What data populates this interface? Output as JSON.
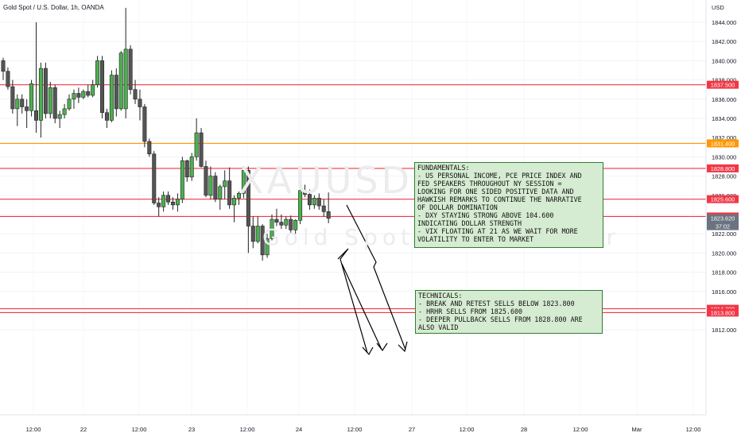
{
  "header": {
    "symbol_title": "Gold Spot / U.S. Dollar, 1h, OANDA",
    "currency": "USD"
  },
  "watermark": {
    "ticker": "XAUUSD, 1h",
    "description": "Gold Spot / U.S. Dollar"
  },
  "notes": {
    "fundamentals": "FUNDAMENTALS:\n- US PERSONAL INCOME, PCE PRICE INDEX AND\nFED SPEAKERS THROUGHOUT NY SESSION =\nLOOKING FOR ONE SIDED POSITIVE DATA AND\nHAWKISH REMARKS TO CONTINUE THE NARRATIVE\nOF DOLLAR DOMINATION\n- DXY STAYING STRONG ABOVE 104.600\nINDICATING DOLLAR STRENGTH\n- VIX FLOATING AT 21 AS WE WAIT FOR MORE\nVOLATILITY TO ENTER TO MARKET",
    "technicals": "TECHNICALS:\n- BREAK AND RETEST SELLS BELOW 1823.800\n- HRHR SELLS FROM 1825.600\n- DEEPER PULLBACK SELLS FROM 1828.800 ARE\nALSO VALID"
  },
  "colors": {
    "up": "#4caf50",
    "down": "#555555",
    "level_red": "#f23645",
    "level_orange": "#ff9800",
    "current_price_bg": "#6a7380"
  },
  "chart_data": {
    "type": "candlestick",
    "title": "Gold Spot / U.S. Dollar, 1h, OANDA",
    "ylim": [
      1811.6,
      1845.6
    ],
    "y_ticks": [
      "1812.000",
      "1814.000",
      "1816.000",
      "1818.000",
      "1820.000",
      "1822.000",
      "1824.000",
      "1826.000",
      "1828.000",
      "1830.000",
      "1832.000",
      "1834.000",
      "1836.000",
      "1838.000",
      "1840.000",
      "1842.000",
      "1844.000"
    ],
    "x_ticks": [
      "12:00",
      "22",
      "12:00",
      "23",
      "12:00",
      "24",
      "12:00",
      "27",
      "12:00",
      "28",
      "12:00",
      "Mar",
      "12:00"
    ],
    "levels": [
      {
        "value": "1837.500",
        "color": "red"
      },
      {
        "value": "1831.400",
        "color": "orange"
      },
      {
        "value": "1828.800",
        "color": "red"
      },
      {
        "value": "1825.600",
        "color": "red"
      },
      {
        "value": "1823.800",
        "color": "red"
      },
      {
        "value": "1814.200",
        "color": "red"
      },
      {
        "value": "1813.800",
        "color": "red"
      }
    ],
    "current_price": {
      "value": "1823.620",
      "countdown": "37:02"
    },
    "candles": [
      [
        1840,
        1840.3,
        1838,
        1838.9
      ],
      [
        1838.9,
        1839.3,
        1837,
        1837.3
      ],
      [
        1837.3,
        1838,
        1834.5,
        1835
      ],
      [
        1835,
        1836.5,
        1833.2,
        1836
      ],
      [
        1836,
        1836.5,
        1834.5,
        1835.2
      ],
      [
        1835.2,
        1836,
        1833,
        1834.8
      ],
      [
        1834.8,
        1838,
        1834.2,
        1837.6
      ],
      [
        1834.8,
        1844,
        1832.5,
        1833.8
      ],
      [
        1833.8,
        1839.8,
        1832,
        1839.2
      ],
      [
        1839.2,
        1839.8,
        1834,
        1834.5
      ],
      [
        1834.5,
        1837.8,
        1834,
        1837.2
      ],
      [
        1837.2,
        1837.5,
        1833.5,
        1834
      ],
      [
        1834,
        1834.8,
        1833,
        1834.4
      ],
      [
        1834.4,
        1835.5,
        1834,
        1835
      ],
      [
        1835,
        1836.5,
        1834.8,
        1836
      ],
      [
        1836,
        1837,
        1835,
        1836.6
      ],
      [
        1836.6,
        1837.2,
        1835.6,
        1836.2
      ],
      [
        1836.2,
        1837,
        1836,
        1836.8
      ],
      [
        1836.8,
        1837.5,
        1836.2,
        1836.4
      ],
      [
        1836.4,
        1838,
        1836.2,
        1837.5
      ],
      [
        1837.5,
        1840.5,
        1837.2,
        1840
      ],
      [
        1840,
        1840.5,
        1834,
        1834.6
      ],
      [
        1834.6,
        1835,
        1833,
        1833.8
      ],
      [
        1833.8,
        1839,
        1833.6,
        1838.5
      ],
      [
        1838.5,
        1839.2,
        1834.2,
        1835
      ],
      [
        1835,
        1841,
        1834.8,
        1840.8
      ],
      [
        1835,
        1845.5,
        1834,
        1841.2
      ],
      [
        1841.2,
        1841.6,
        1836.5,
        1837
      ],
      [
        1837,
        1838,
        1835.5,
        1836
      ],
      [
        1836,
        1837,
        1833.8,
        1835.2
      ],
      [
        1835.2,
        1835.5,
        1831,
        1831.6
      ],
      [
        1831.6,
        1831.9,
        1830,
        1830.3
      ],
      [
        1830.3,
        1830.6,
        1825,
        1825.2
      ],
      [
        1825.2,
        1825.8,
        1823.8,
        1824.8
      ],
      [
        1824.8,
        1826.4,
        1824.3,
        1826
      ],
      [
        1826,
        1826.4,
        1825,
        1825.3
      ],
      [
        1825.3,
        1825.8,
        1824.5,
        1825
      ],
      [
        1825,
        1826.2,
        1824.3,
        1825.6
      ],
      [
        1825.6,
        1830,
        1825.2,
        1829.6
      ],
      [
        1829.6,
        1829.7,
        1827.4,
        1827.9
      ],
      [
        1827.9,
        1830.4,
        1827.5,
        1830
      ],
      [
        1830,
        1834,
        1829.6,
        1832.5
      ],
      [
        1832.5,
        1833,
        1828.9,
        1829
      ],
      [
        1829,
        1829.6,
        1825.8,
        1826
      ],
      [
        1826,
        1829,
        1825.6,
        1828
      ],
      [
        1828,
        1828.4,
        1825.3,
        1825.6
      ],
      [
        1825.6,
        1827.1,
        1824.5,
        1826.9
      ],
      [
        1826.9,
        1828.6,
        1825.6,
        1827.5
      ],
      [
        1827.5,
        1828.9,
        1824.6,
        1825
      ],
      [
        1825,
        1826,
        1823.2,
        1825.7
      ],
      [
        1825.7,
        1826.4,
        1825,
        1826.2
      ],
      [
        1826.2,
        1829,
        1825.7,
        1828.6
      ],
      [
        1828.6,
        1829,
        1820,
        1822.8
      ],
      [
        1822.8,
        1823.8,
        1820.5,
        1821.2
      ],
      [
        1821.2,
        1823.8,
        1821,
        1822.8
      ],
      [
        1822.8,
        1823,
        1819.2,
        1819.8
      ],
      [
        1819.8,
        1822,
        1819.5,
        1821.5
      ],
      [
        1821.5,
        1824,
        1821.3,
        1823.5
      ],
      [
        1823.5,
        1824.6,
        1822.8,
        1823.2
      ],
      [
        1823.2,
        1824,
        1822.5,
        1822.9
      ],
      [
        1822.9,
        1823.8,
        1822.5,
        1823.5
      ],
      [
        1823.5,
        1823.9,
        1822,
        1822.4
      ],
      [
        1822.4,
        1823.5,
        1822,
        1823.4
      ],
      [
        1823.4,
        1826.8,
        1823,
        1826.5
      ],
      [
        1826.5,
        1827.1,
        1825.8,
        1826.1
      ],
      [
        1826.1,
        1826.6,
        1824.5,
        1825
      ],
      [
        1825,
        1826,
        1824.6,
        1825.7
      ],
      [
        1825.7,
        1826.2,
        1824.5,
        1824.9
      ],
      [
        1824.9,
        1825.6,
        1823.8,
        1824.3
      ],
      [
        1824.3,
        1826.3,
        1823.1,
        1823.6
      ]
    ],
    "annotations": [
      "arrow projection: drop from ~1826 toward ~1816"
    ]
  }
}
